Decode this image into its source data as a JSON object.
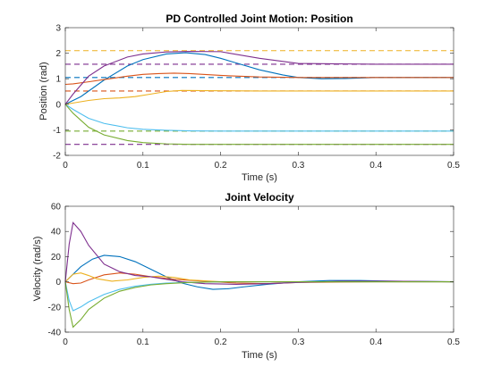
{
  "chart_data": [
    {
      "type": "line",
      "title": "PD Controlled Joint Motion: Position",
      "xlabel": "Time (s)",
      "ylabel": "Position (rad)",
      "xlim": [
        0,
        0.5
      ],
      "ylim": [
        -2,
        3
      ],
      "xticks": [
        0,
        0.1,
        0.2,
        0.3,
        0.4,
        0.5
      ],
      "xtick_labels": [
        "0",
        "0.1",
        "0.2",
        "0.3",
        "0.4",
        "0.5"
      ],
      "yticks": [
        -2,
        -1,
        0,
        1,
        2,
        3
      ],
      "ytick_labels": [
        "-2",
        "-1",
        "0",
        "1",
        "2",
        "3"
      ],
      "grid": false,
      "reference_lines": [
        {
          "color": "#0072BD",
          "y": 1.05
        },
        {
          "color": "#D95319",
          "y": 0.52
        },
        {
          "color": "#EDB120",
          "y": 2.1
        },
        {
          "color": "#7E2F8E",
          "y": 1.57
        },
        {
          "color": "#77AC30",
          "y": -1.05
        },
        {
          "color": "#7E2F8E",
          "y": -1.57
        }
      ],
      "series": [
        {
          "color": "#0072BD",
          "x": [
            0,
            0.02,
            0.05,
            0.08,
            0.1,
            0.13,
            0.155,
            0.18,
            0.2,
            0.22,
            0.25,
            0.28,
            0.3,
            0.33,
            0.36,
            0.4,
            0.45,
            0.5
          ],
          "y": [
            0,
            0.3,
            0.95,
            1.5,
            1.75,
            1.97,
            2.02,
            1.95,
            1.8,
            1.62,
            1.35,
            1.15,
            1.05,
            1.0,
            1.01,
            1.05,
            1.05,
            1.05
          ]
        },
        {
          "color": "#D95319",
          "x": [
            0,
            0.01,
            0.03,
            0.05,
            0.08,
            0.1,
            0.12,
            0.14,
            0.16,
            0.2,
            0.25,
            0.3,
            0.4,
            0.5
          ],
          "y": [
            0.78,
            0.8,
            0.88,
            0.97,
            1.1,
            1.17,
            1.2,
            1.22,
            1.2,
            1.13,
            1.07,
            1.05,
            1.05,
            1.05
          ]
        },
        {
          "color": "#EDB120",
          "x": [
            0,
            0.01,
            0.03,
            0.05,
            0.07,
            0.09,
            0.11,
            0.13,
            0.15,
            0.2,
            0.25,
            0.3,
            0.4,
            0.5
          ],
          "y": [
            0,
            0.05,
            0.15,
            0.22,
            0.25,
            0.3,
            0.4,
            0.5,
            0.54,
            0.53,
            0.52,
            0.52,
            0.52,
            0.52
          ]
        },
        {
          "color": "#7E2F8E",
          "x": [
            0,
            0.01,
            0.03,
            0.05,
            0.08,
            0.1,
            0.13,
            0.16,
            0.2,
            0.25,
            0.3,
            0.4,
            0.5
          ],
          "y": [
            0,
            0.4,
            1.1,
            1.5,
            1.85,
            1.97,
            2.05,
            2.07,
            2.06,
            1.8,
            1.6,
            1.57,
            1.57
          ]
        },
        {
          "color": "#4DBEEE",
          "x": [
            0,
            0.01,
            0.03,
            0.05,
            0.08,
            0.1,
            0.13,
            0.16,
            0.2,
            0.3,
            0.4,
            0.5
          ],
          "y": [
            0,
            -0.2,
            -0.55,
            -0.75,
            -0.92,
            -0.98,
            -1.02,
            -1.04,
            -1.05,
            -1.05,
            -1.05,
            -1.05
          ]
        },
        {
          "color": "#77AC30",
          "x": [
            0,
            0.01,
            0.03,
            0.05,
            0.08,
            0.1,
            0.13,
            0.16,
            0.2,
            0.3,
            0.4,
            0.5
          ],
          "y": [
            0,
            -0.35,
            -0.9,
            -1.2,
            -1.42,
            -1.5,
            -1.55,
            -1.57,
            -1.57,
            -1.57,
            -1.57,
            -1.57
          ]
        }
      ]
    },
    {
      "type": "line",
      "title": "Joint Velocity",
      "xlabel": "Time (s)",
      "ylabel": "Velocity (rad/s)",
      "xlim": [
        0,
        0.5
      ],
      "ylim": [
        -40,
        60
      ],
      "xticks": [
        0,
        0.1,
        0.2,
        0.3,
        0.4,
        0.5
      ],
      "xtick_labels": [
        "0",
        "0.1",
        "0.2",
        "0.3",
        "0.4",
        "0.5"
      ],
      "yticks": [
        -40,
        -20,
        0,
        20,
        40,
        60
      ],
      "ytick_labels": [
        "-40",
        "-20",
        "0",
        "20",
        "40",
        "60"
      ],
      "grid": false,
      "series": [
        {
          "color": "#0072BD",
          "x": [
            0,
            0.02,
            0.035,
            0.05,
            0.07,
            0.09,
            0.11,
            0.13,
            0.15,
            0.17,
            0.19,
            0.21,
            0.23,
            0.26,
            0.3,
            0.34,
            0.38,
            0.42,
            0.5
          ],
          "y": [
            0,
            12,
            18,
            21,
            20,
            16,
            10,
            4,
            -1,
            -4,
            -6,
            -5.5,
            -4,
            -2,
            0,
            1,
            1,
            0.5,
            0
          ]
        },
        {
          "color": "#D95319",
          "x": [
            0,
            0.01,
            0.02,
            0.03,
            0.05,
            0.07,
            0.09,
            0.11,
            0.14,
            0.18,
            0.22,
            0.26,
            0.3,
            0.4,
            0.5
          ],
          "y": [
            0,
            -1.5,
            -1,
            1.5,
            5.5,
            7,
            6,
            4,
            2,
            0.5,
            -1,
            -1.5,
            -0.5,
            0,
            0
          ]
        },
        {
          "color": "#EDB120",
          "x": [
            0,
            0.01,
            0.02,
            0.03,
            0.04,
            0.06,
            0.08,
            0.1,
            0.12,
            0.14,
            0.16,
            0.2,
            0.3,
            0.4,
            0.5
          ],
          "y": [
            0,
            6,
            7,
            5,
            2.5,
            0.5,
            1.5,
            3.5,
            4.5,
            3.5,
            1.5,
            0,
            0,
            0,
            0
          ]
        },
        {
          "color": "#7E2F8E",
          "x": [
            0,
            0.005,
            0.01,
            0.02,
            0.03,
            0.05,
            0.07,
            0.09,
            0.11,
            0.13,
            0.15,
            0.18,
            0.22,
            0.26,
            0.3,
            0.36,
            0.42,
            0.5
          ],
          "y": [
            0,
            30,
            47,
            40,
            29,
            14,
            8,
            5,
            4,
            2,
            0,
            -1.5,
            -2,
            -1.5,
            -0.5,
            0.5,
            0.5,
            0
          ]
        },
        {
          "color": "#4DBEEE",
          "x": [
            0,
            0.005,
            0.01,
            0.02,
            0.03,
            0.05,
            0.07,
            0.09,
            0.11,
            0.13,
            0.16,
            0.2,
            0.3,
            0.4,
            0.5
          ],
          "y": [
            0,
            -15,
            -23,
            -20,
            -16,
            -10,
            -6,
            -3.5,
            -2,
            -1,
            -0.5,
            0,
            0,
            0,
            0
          ]
        },
        {
          "color": "#77AC30",
          "x": [
            0,
            0.005,
            0.01,
            0.02,
            0.03,
            0.05,
            0.07,
            0.09,
            0.11,
            0.13,
            0.16,
            0.2,
            0.3,
            0.4,
            0.5
          ],
          "y": [
            0,
            -22,
            -36,
            -30,
            -22,
            -13,
            -7.5,
            -4.5,
            -2.5,
            -1.5,
            -0.5,
            0,
            0,
            0,
            0
          ]
        }
      ]
    }
  ]
}
